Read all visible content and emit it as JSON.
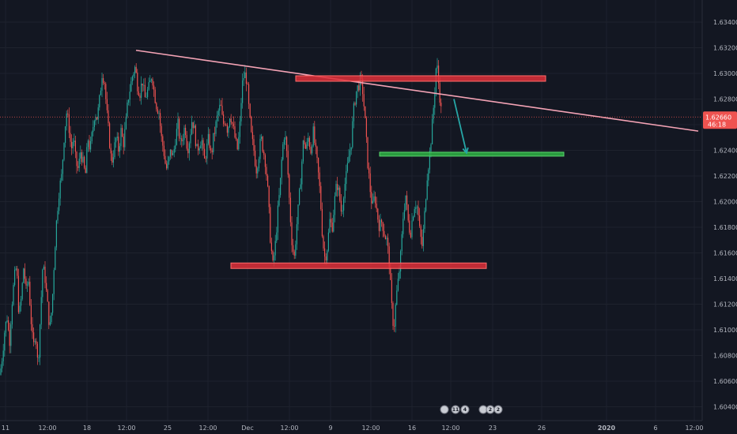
{
  "chart_data": {
    "type": "candlestick",
    "instrument_note": "",
    "y_axis": {
      "range": [
        1.603,
        1.635
      ],
      "ticks": [
        "1.63400",
        "1.63200",
        "1.63000",
        "1.62800",
        "1.62600",
        "1.62400",
        "1.62200",
        "1.62000",
        "1.61800",
        "1.61600",
        "1.61400",
        "1.61200",
        "1.61000",
        "1.60800",
        "1.60600",
        "1.60400"
      ],
      "side": "right"
    },
    "x_axis": {
      "ticks": [
        {
          "label": "11",
          "bold": false
        },
        {
          "label": "12:00",
          "bold": false
        },
        {
          "label": "18",
          "bold": false
        },
        {
          "label": "12:00",
          "bold": false
        },
        {
          "label": "25",
          "bold": false
        },
        {
          "label": "12:00",
          "bold": false
        },
        {
          "label": "Dec",
          "bold": false
        },
        {
          "label": "12:00",
          "bold": false
        },
        {
          "label": "9",
          "bold": false
        },
        {
          "label": "12:00",
          "bold": false
        },
        {
          "label": "16",
          "bold": false
        },
        {
          "label": "12:00",
          "bold": false
        },
        {
          "label": "23",
          "bold": false
        },
        {
          "label": "26",
          "bold": false
        },
        {
          "label": "2020",
          "bold": true
        },
        {
          "label": "6",
          "bold": false
        },
        {
          "label": "12:00",
          "bold": false
        }
      ]
    },
    "current_price": {
      "price": "1.62660",
      "countdown": "46:18",
      "value": 1.6266
    },
    "price_path": [
      [
        0,
        1.6065
      ],
      [
        3,
        1.608
      ],
      [
        6,
        1.61
      ],
      [
        9,
        1.611
      ],
      [
        12,
        1.609
      ],
      [
        15,
        1.612
      ],
      [
        18,
        1.614
      ],
      [
        21,
        1.615
      ],
      [
        24,
        1.611
      ],
      [
        27,
        1.6125
      ],
      [
        30,
        1.615
      ],
      [
        33,
        1.613
      ],
      [
        36,
        1.614
      ],
      [
        39,
        1.611
      ],
      [
        42,
        1.6085
      ],
      [
        45,
        1.61
      ],
      [
        48,
        1.607
      ],
      [
        51,
        1.611
      ],
      [
        54,
        1.615
      ],
      [
        57,
        1.614
      ],
      [
        60,
        1.612
      ],
      [
        63,
        1.61
      ],
      [
        66,
        1.612
      ],
      [
        69,
        1.616
      ],
      [
        72,
        1.619
      ],
      [
        75,
        1.621
      ],
      [
        78,
        1.622
      ],
      [
        81,
        1.625
      ],
      [
        84,
        1.627
      ],
      [
        87,
        1.626
      ],
      [
        90,
        1.624
      ],
      [
        93,
        1.625
      ],
      [
        96,
        1.623
      ],
      [
        99,
        1.6225
      ],
      [
        102,
        1.624
      ],
      [
        105,
        1.623
      ],
      [
        108,
        1.622
      ],
      [
        111,
        1.625
      ],
      [
        114,
        1.624
      ],
      [
        117,
        1.6255
      ],
      [
        120,
        1.627
      ],
      [
        123,
        1.6265
      ],
      [
        126,
        1.628
      ],
      [
        129,
        1.63
      ],
      [
        132,
        1.6295
      ],
      [
        135,
        1.627
      ],
      [
        138,
        1.625
      ],
      [
        141,
        1.623
      ],
      [
        144,
        1.624
      ],
      [
        147,
        1.625
      ],
      [
        150,
        1.624
      ],
      [
        153,
        1.6255
      ],
      [
        156,
        1.6245
      ],
      [
        159,
        1.626
      ],
      [
        162,
        1.628
      ],
      [
        165,
        1.629
      ],
      [
        168,
        1.63
      ],
      [
        171,
        1.6305
      ],
      [
        174,
        1.629
      ],
      [
        177,
        1.6285
      ],
      [
        180,
        1.6295
      ],
      [
        183,
        1.628
      ],
      [
        186,
        1.6285
      ],
      [
        189,
        1.629
      ],
      [
        192,
        1.63
      ],
      [
        195,
        1.6285
      ],
      [
        198,
        1.6275
      ],
      [
        201,
        1.627
      ],
      [
        204,
        1.625
      ],
      [
        207,
        1.624
      ],
      [
        210,
        1.6225
      ],
      [
        213,
        1.623
      ],
      [
        216,
        1.624
      ],
      [
        219,
        1.6235
      ],
      [
        222,
        1.625
      ],
      [
        225,
        1.626
      ],
      [
        228,
        1.6245
      ],
      [
        231,
        1.625
      ],
      [
        234,
        1.626
      ],
      [
        237,
        1.624
      ],
      [
        240,
        1.625
      ],
      [
        243,
        1.6265
      ],
      [
        246,
        1.6255
      ],
      [
        249,
        1.624
      ],
      [
        252,
        1.6245
      ],
      [
        255,
        1.625
      ],
      [
        258,
        1.623
      ],
      [
        261,
        1.624
      ],
      [
        264,
        1.625
      ],
      [
        267,
        1.6235
      ],
      [
        270,
        1.625
      ],
      [
        273,
        1.626
      ],
      [
        276,
        1.627
      ],
      [
        279,
        1.6275
      ],
      [
        282,
        1.626
      ],
      [
        285,
        1.6265
      ],
      [
        288,
        1.6255
      ],
      [
        291,
        1.627
      ],
      [
        294,
        1.626
      ],
      [
        297,
        1.625
      ],
      [
        300,
        1.624
      ],
      [
        303,
        1.6255
      ],
      [
        306,
        1.629
      ],
      [
        309,
        1.63
      ],
      [
        312,
        1.6295
      ],
      [
        315,
        1.627
      ],
      [
        318,
        1.625
      ],
      [
        321,
        1.624
      ],
      [
        324,
        1.6225
      ],
      [
        327,
        1.6235
      ],
      [
        330,
        1.625
      ],
      [
        333,
        1.624
      ],
      [
        336,
        1.623
      ],
      [
        339,
        1.6205
      ],
      [
        342,
        1.617
      ],
      [
        345,
        1.615
      ],
      [
        348,
        1.6165
      ],
      [
        351,
        1.619
      ],
      [
        354,
        1.621
      ],
      [
        357,
        1.624
      ],
      [
        360,
        1.6255
      ],
      [
        363,
        1.6235
      ],
      [
        366,
        1.62
      ],
      [
        369,
        1.617
      ],
      [
        372,
        1.6155
      ],
      [
        375,
        1.618
      ],
      [
        378,
        1.62
      ],
      [
        381,
        1.6225
      ],
      [
        384,
        1.625
      ],
      [
        387,
        1.624
      ],
      [
        390,
        1.625
      ],
      [
        393,
        1.624
      ],
      [
        396,
        1.6255
      ],
      [
        399,
        1.624
      ],
      [
        402,
        1.6225
      ],
      [
        405,
        1.6205
      ],
      [
        408,
        1.617
      ],
      [
        411,
        1.6155
      ],
      [
        414,
        1.6165
      ],
      [
        417,
        1.6185
      ],
      [
        420,
        1.618
      ],
      [
        423,
        1.62
      ],
      [
        426,
        1.6215
      ],
      [
        429,
        1.6205
      ],
      [
        432,
        1.619
      ],
      [
        435,
        1.621
      ],
      [
        438,
        1.622
      ],
      [
        441,
        1.6235
      ],
      [
        444,
        1.6245
      ],
      [
        447,
        1.627
      ],
      [
        450,
        1.6285
      ],
      [
        453,
        1.629
      ],
      [
        456,
        1.6295
      ],
      [
        459,
        1.6285
      ],
      [
        462,
        1.626
      ],
      [
        465,
        1.623
      ],
      [
        468,
        1.621
      ],
      [
        471,
        1.6195
      ],
      [
        474,
        1.6205
      ],
      [
        477,
        1.619
      ],
      [
        480,
        1.618
      ],
      [
        483,
        1.6185
      ],
      [
        486,
        1.6175
      ],
      [
        489,
        1.617
      ],
      [
        492,
        1.6155
      ],
      [
        495,
        1.612
      ],
      [
        498,
        1.61
      ],
      [
        501,
        1.6125
      ],
      [
        504,
        1.614
      ],
      [
        507,
        1.616
      ],
      [
        510,
        1.619
      ],
      [
        513,
        1.6205
      ],
      [
        516,
        1.6185
      ],
      [
        519,
        1.6175
      ],
      [
        522,
        1.619
      ],
      [
        525,
        1.62
      ],
      [
        528,
        1.6195
      ],
      [
        531,
        1.6175
      ],
      [
        534,
        1.6165
      ],
      [
        537,
        1.619
      ],
      [
        540,
        1.622
      ],
      [
        543,
        1.6235
      ],
      [
        546,
        1.6255
      ],
      [
        549,
        1.628
      ],
      [
        552,
        1.631
      ],
      [
        555,
        1.629
      ],
      [
        558,
        1.627
      ]
    ],
    "drawings": {
      "trendline": {
        "from": {
          "x": 172,
          "price": 1.6318
        },
        "to": {
          "x": 883,
          "price": 1.6255
        },
        "color": "#f4a3b5"
      },
      "resistance_zone": {
        "x1": 374,
        "x2": 690,
        "price": 1.6296,
        "color": "#e1303a"
      },
      "support_zone": {
        "x1": 292,
        "x2": 615,
        "price": 1.615,
        "color": "#e1303a"
      },
      "target_line": {
        "x1": 480,
        "x2": 713,
        "price": 1.6237,
        "color": "#2fb344"
      },
      "arrow": {
        "from": {
          "x": 574,
          "price": 1.628
        },
        "to": {
          "x": 590,
          "price": 1.6238
        },
        "color": "#26a6a6"
      }
    },
    "events": [
      {
        "x": 562,
        "label": ""
      },
      {
        "x": 576,
        "label": "11"
      },
      {
        "x": 588,
        "label": "4"
      },
      {
        "x": 611,
        "label": ""
      },
      {
        "x": 620,
        "label": "2"
      },
      {
        "x": 630,
        "label": "2"
      }
    ],
    "colors": {
      "background": "#131722",
      "grid": "#1e222d",
      "up": "#26a69a",
      "down": "#ef5350",
      "axis_text": "#b2b5be",
      "price_tag": "#ef5350"
    },
    "grid": true,
    "legend": "none"
  }
}
